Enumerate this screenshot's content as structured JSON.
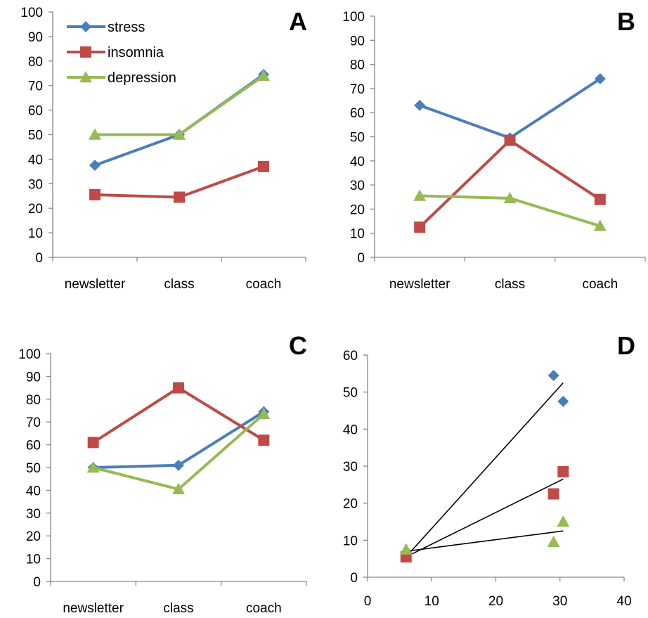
{
  "colors": {
    "stress": "#4a7ebb",
    "insomnia": "#be4b48",
    "depression": "#98b954",
    "trend": "#000000",
    "axis": "#868686"
  },
  "markers": {
    "stress": "diamond",
    "insomnia": "square",
    "depression": "triangle"
  },
  "chart_data": [
    {
      "panel": "A",
      "type": "line",
      "categories": [
        "newsletter",
        "class",
        "coach"
      ],
      "ylim": [
        0,
        100
      ],
      "yticks": [
        0,
        10,
        20,
        30,
        40,
        50,
        60,
        70,
        80,
        90,
        100
      ],
      "legend": "top-left",
      "grid": false,
      "series": [
        {
          "name": "stress",
          "values": [
            37.5,
            50,
            74.5
          ]
        },
        {
          "name": "insomnia",
          "values": [
            25.5,
            24.5,
            37
          ]
        },
        {
          "name": "depression",
          "values": [
            50,
            50,
            74
          ]
        }
      ]
    },
    {
      "panel": "B",
      "type": "line",
      "categories": [
        "newsletter",
        "class",
        "coach"
      ],
      "ylim": [
        0,
        100
      ],
      "yticks": [
        0,
        10,
        20,
        30,
        40,
        50,
        60,
        70,
        80,
        90,
        100
      ],
      "grid": false,
      "series": [
        {
          "values": [
            63,
            49.5,
            74
          ]
        },
        {
          "values": [
            12.5,
            48.5,
            24
          ]
        },
        {
          "values": [
            25.5,
            24.5,
            13
          ]
        }
      ]
    },
    {
      "panel": "C",
      "type": "line",
      "categories": [
        "newsletter",
        "class",
        "coach"
      ],
      "ylim": [
        0,
        100
      ],
      "yticks": [
        0,
        10,
        20,
        30,
        40,
        50,
        60,
        70,
        80,
        90,
        100
      ],
      "grid": false,
      "series": [
        {
          "values": [
            50,
            51,
            74.5
          ]
        },
        {
          "values": [
            61,
            85,
            62
          ]
        },
        {
          "values": [
            50,
            40.5,
            73.5
          ]
        }
      ]
    },
    {
      "panel": "D",
      "type": "scatter",
      "xlim": [
        0,
        40
      ],
      "xticks": [
        0,
        10,
        20,
        30,
        40
      ],
      "ylim": [
        0,
        60
      ],
      "yticks": [
        0,
        10,
        20,
        30,
        40,
        50,
        60
      ],
      "grid": false,
      "series": [
        {
          "points": [
            [
              6,
              6
            ],
            [
              29,
              54.5
            ],
            [
              30.5,
              47.5
            ]
          ],
          "trend": [
            [
              6,
              5.5
            ],
            [
              30.5,
              52.5
            ]
          ]
        },
        {
          "points": [
            [
              6,
              5.5
            ],
            [
              29,
              22.5
            ],
            [
              30.5,
              28.5
            ]
          ],
          "trend": [
            [
              6,
              5.5
            ],
            [
              30.5,
              26.5
            ]
          ]
        },
        {
          "points": [
            [
              6,
              7.5
            ],
            [
              29,
              9.5
            ],
            [
              30.5,
              15
            ]
          ],
          "trend": [
            [
              6,
              7
            ],
            [
              30.5,
              12.5
            ]
          ]
        }
      ]
    }
  ]
}
